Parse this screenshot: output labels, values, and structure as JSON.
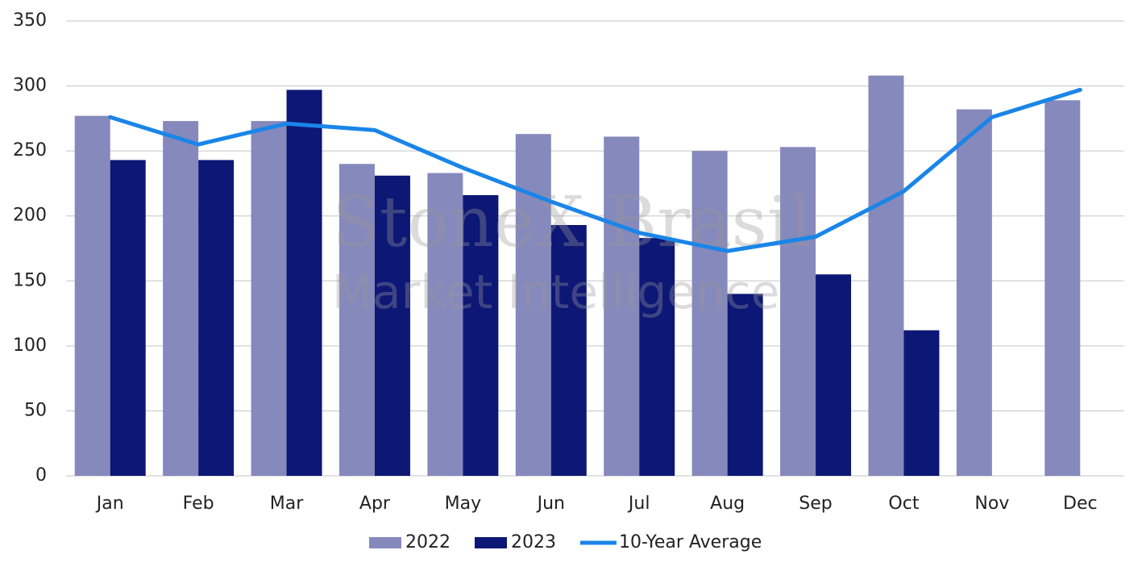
{
  "chart_data": {
    "type": "bar_line",
    "categories": [
      "Jan",
      "Feb",
      "Mar",
      "Apr",
      "May",
      "Jun",
      "Jul",
      "Aug",
      "Sep",
      "Oct",
      "Nov",
      "Dec"
    ],
    "series": [
      {
        "name": "2022",
        "type": "bar",
        "color": "#8689bb",
        "values": [
          277,
          273,
          273,
          240,
          233,
          263,
          261,
          250,
          253,
          308,
          282,
          289
        ]
      },
      {
        "name": "2023",
        "type": "bar",
        "color": "#0d1775",
        "values": [
          243,
          243,
          297,
          231,
          216,
          193,
          183,
          140,
          155,
          112,
          null,
          null
        ]
      },
      {
        "name": "10-Year Average",
        "type": "line",
        "color": "#1a85e8",
        "values": [
          276,
          255,
          271,
          266,
          237,
          211,
          187,
          173,
          184,
          219,
          276,
          297
        ]
      }
    ],
    "ylim": [
      0,
      350
    ],
    "yticks": [
      0,
      50,
      100,
      150,
      200,
      250,
      300,
      350
    ],
    "grid": true,
    "legend": "bottom",
    "watermark": [
      "StoneX Brasil",
      "Market Intelligence"
    ]
  }
}
